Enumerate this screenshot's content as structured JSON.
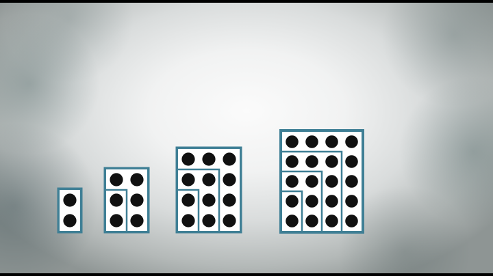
{
  "scene": {
    "background_center": "#f4f5f5",
    "background_edge": "#8e9594",
    "frame_color": "#3f7f95",
    "inner_line_color": "#3f7f95",
    "dot_color": "#111111",
    "cell_fill": "#ffffff"
  },
  "figures": [
    {
      "columns": 1,
      "rows": 2,
      "dots": 2,
      "staircase_steps": 0
    },
    {
      "columns": 2,
      "rows": 3,
      "dots": 6,
      "staircase_steps": 1
    },
    {
      "columns": 3,
      "rows": 4,
      "dots": 12,
      "staircase_steps": 2
    },
    {
      "columns": 4,
      "rows": 5,
      "dots": 20,
      "staircase_steps": 3
    }
  ]
}
